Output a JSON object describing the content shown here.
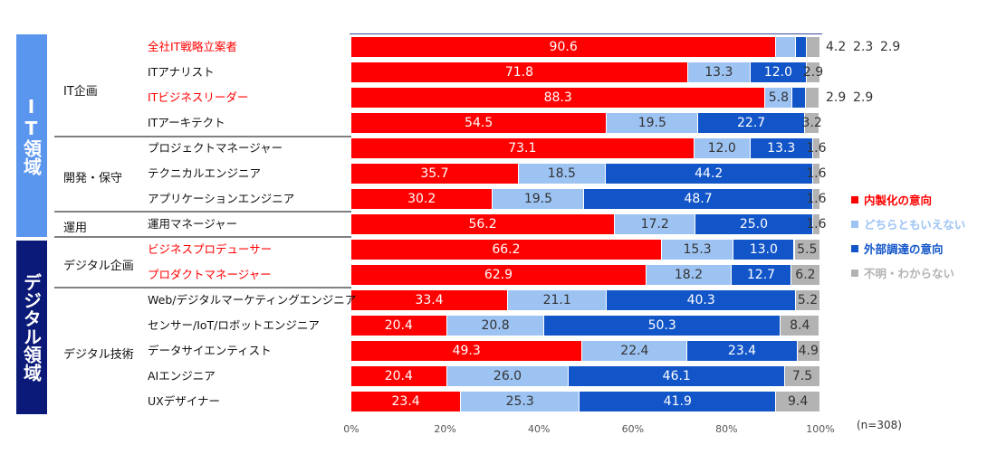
{
  "chart_data": {
    "type": "bar",
    "orientation": "horizontal",
    "stacked": true,
    "xlim": [
      0,
      100
    ],
    "xticks": [
      "0%",
      "20%",
      "40%",
      "60%",
      "80%",
      "100%"
    ],
    "note": "(n=308)",
    "domains": [
      {
        "label": "IT領域",
        "color": "#5B96EE"
      },
      {
        "label": "デジタル領域",
        "color": "#0B1A78"
      }
    ],
    "groups": [
      "IT企画",
      "開発・保守",
      "運用",
      "デジタル企画",
      "デジタル技術"
    ],
    "series": [
      {
        "name": "内製化の意向",
        "color": "#FF0000"
      },
      {
        "name": "どちらともいえない",
        "color": "#9DC3F3"
      },
      {
        "name": "外部調達の意向",
        "color": "#1255C8"
      },
      {
        "name": "不明・わからない",
        "color": "#B3B3B3"
      }
    ],
    "rows": [
      {
        "label": "全社IT戦略立案者",
        "highlight": true,
        "values": [
          90.6,
          4.2,
          2.3,
          2.9
        ]
      },
      {
        "label": "ITアナリスト",
        "highlight": false,
        "values": [
          71.8,
          13.3,
          12.0,
          2.9
        ]
      },
      {
        "label": "ITビジネスリーダー",
        "highlight": true,
        "values": [
          88.3,
          5.8,
          2.9,
          2.9
        ]
      },
      {
        "label": "ITアーキテクト",
        "highlight": false,
        "values": [
          54.5,
          19.5,
          22.7,
          3.2
        ]
      },
      {
        "label": "プロジェクトマネージャー",
        "highlight": false,
        "values": [
          73.1,
          12.0,
          13.3,
          1.6
        ]
      },
      {
        "label": "テクニカルエンジニア",
        "highlight": false,
        "values": [
          35.7,
          18.5,
          44.2,
          1.6
        ]
      },
      {
        "label": "アプリケーションエンジニア",
        "highlight": false,
        "values": [
          30.2,
          19.5,
          48.7,
          1.6
        ]
      },
      {
        "label": "運用マネージャー",
        "highlight": false,
        "values": [
          56.2,
          17.2,
          25.0,
          1.6
        ]
      },
      {
        "label": "ビジネスプロデューサー",
        "highlight": true,
        "values": [
          66.2,
          15.3,
          13.0,
          5.5
        ]
      },
      {
        "label": "プロダクトマネージャー",
        "highlight": true,
        "values": [
          62.9,
          18.2,
          12.7,
          6.2
        ]
      },
      {
        "label": "Web/デジタルマーケティングエンジニア",
        "highlight": false,
        "values": [
          33.4,
          21.1,
          40.3,
          5.2
        ]
      },
      {
        "label": "センサー/IoT/ロボットエンジニア",
        "highlight": false,
        "values": [
          20.4,
          20.8,
          50.3,
          8.4
        ]
      },
      {
        "label": "データサイエンティスト",
        "highlight": false,
        "values": [
          49.3,
          22.4,
          23.4,
          4.9
        ]
      },
      {
        "label": "AIエンジニア",
        "highlight": false,
        "values": [
          20.4,
          26.0,
          46.1,
          7.5
        ]
      },
      {
        "label": "UXデザイナー",
        "highlight": false,
        "values": [
          23.4,
          25.3,
          41.9,
          9.4
        ]
      }
    ]
  }
}
